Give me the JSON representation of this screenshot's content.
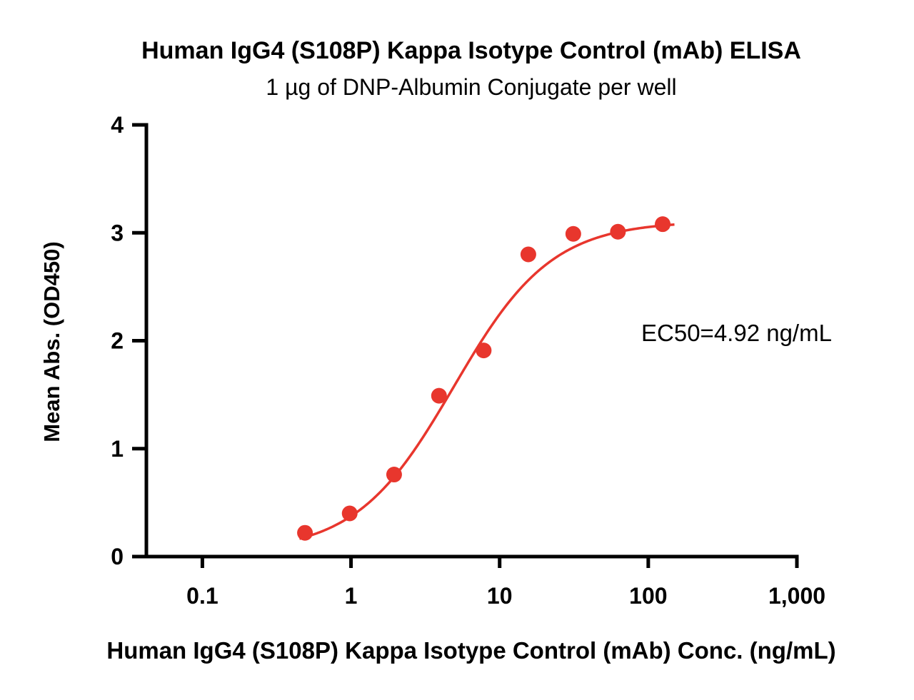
{
  "chart_data": {
    "type": "scatter",
    "title": "Human IgG4 (S108P) Kappa Isotype Control (mAb) ELISA",
    "subtitle": "1 µg of DNP-Albumin Conjugate per well",
    "xlabel": "Human IgG4 (S108P) Kappa Isotype Control (mAb) Conc. (ng/mL)",
    "ylabel": "Mean Abs. (OD450)",
    "annotation": "EC50=4.92 ng/mL",
    "x_axis": {
      "scale": "log10",
      "min": 0.042,
      "max": 1000,
      "ticks": [
        {
          "value": 0.1,
          "label": "0.1"
        },
        {
          "value": 1,
          "label": "1"
        },
        {
          "value": 10,
          "label": "10"
        },
        {
          "value": 100,
          "label": "100"
        },
        {
          "value": 1000,
          "label": "1,000"
        }
      ]
    },
    "y_axis": {
      "min": 0,
      "max": 4,
      "ticks": [
        {
          "value": 0,
          "label": "0"
        },
        {
          "value": 1,
          "label": "1"
        },
        {
          "value": 2,
          "label": "2"
        },
        {
          "value": 3,
          "label": "3"
        },
        {
          "value": 4,
          "label": "4"
        }
      ]
    },
    "points": [
      {
        "x": 0.49,
        "y": 0.22
      },
      {
        "x": 0.98,
        "y": 0.4
      },
      {
        "x": 1.95,
        "y": 0.76
      },
      {
        "x": 3.91,
        "y": 1.49
      },
      {
        "x": 7.81,
        "y": 1.91
      },
      {
        "x": 15.6,
        "y": 2.8
      },
      {
        "x": 31.3,
        "y": 2.99
      },
      {
        "x": 62.5,
        "y": 3.01
      },
      {
        "x": 125,
        "y": 3.08
      }
    ],
    "fit": {
      "model": "4PL",
      "ec50": 4.92,
      "hill": 1.32,
      "bottom": 0.04,
      "top": 3.11,
      "x_start": 0.45,
      "x_end": 150
    },
    "colors": {
      "series": "#E8362D",
      "axis": "#000000"
    },
    "legend": "none",
    "grid": false
  }
}
